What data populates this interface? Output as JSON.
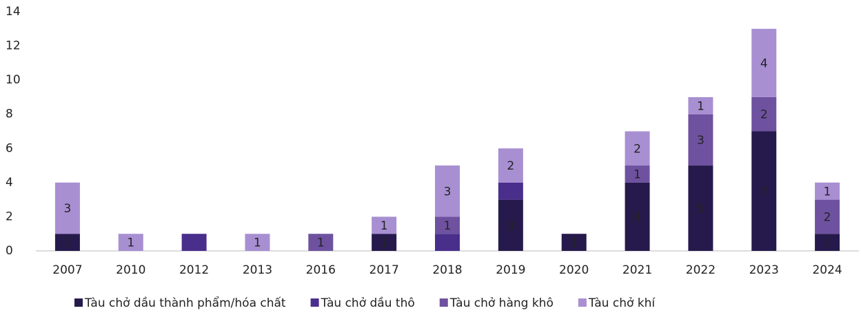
{
  "chart_data": {
    "type": "stacked_bar",
    "categories": [
      "2007",
      "2010",
      "2012",
      "2013",
      "2016",
      "2017",
      "2018",
      "2019",
      "2020",
      "2021",
      "2022",
      "2023",
      "2024"
    ],
    "series": [
      {
        "name": "Tàu chở dầu thành phẩm/hóa chất",
        "color": "#261a4c",
        "labels": true,
        "values": [
          1,
          0,
          0,
          0,
          0,
          1,
          0,
          3,
          1,
          4,
          5,
          7,
          1
        ]
      },
      {
        "name": "Tàu chở dầu thô",
        "color": "#4a2e8c",
        "labels": false,
        "values": [
          0,
          0,
          1,
          0,
          0,
          0,
          1,
          1,
          0,
          0,
          0,
          0,
          0
        ]
      },
      {
        "name": "Tàu chở hàng khô",
        "color": "#6e52a0",
        "labels": true,
        "values": [
          0,
          0,
          0,
          0,
          1,
          0,
          1,
          0,
          0,
          1,
          3,
          2,
          2
        ]
      },
      {
        "name": "Tàu chở khí",
        "color": "#a88fd2",
        "labels": true,
        "values": [
          3,
          1,
          0,
          1,
          0,
          1,
          3,
          2,
          0,
          2,
          1,
          4,
          1
        ]
      }
    ],
    "ylim": [
      0,
      14
    ],
    "yticks": [
      0,
      2,
      4,
      6,
      8,
      10,
      12,
      14
    ],
    "grid": false,
    "legend": "bottom"
  }
}
